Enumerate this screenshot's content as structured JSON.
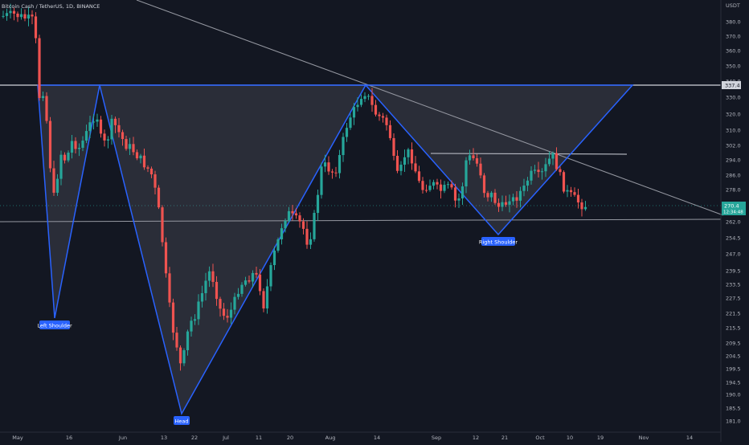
{
  "header": {
    "symbol_title": "Bitcoin Cash / TetherUS, 1D, BINANCE",
    "currency": "USDT"
  },
  "price_axis": {
    "ticks": [
      "380.0",
      "370.0",
      "360.0",
      "350.0",
      "340.0",
      "330.0",
      "320.0",
      "310.0",
      "302.0",
      "294.0",
      "286.0",
      "278.0",
      "270.0",
      "262.0",
      "254.5",
      "247.0",
      "239.5",
      "233.5",
      "227.5",
      "221.5",
      "215.5",
      "209.5",
      "204.5",
      "199.5",
      "194.5",
      "190.0",
      "185.5",
      "181.0"
    ],
    "badges": {
      "resistance": "337.4",
      "current_price": "270.4",
      "countdown": "12:34:48"
    }
  },
  "time_axis": {
    "labels": [
      "May",
      "16",
      "Jun",
      "13",
      "22",
      "Jul",
      "11",
      "20",
      "Aug",
      "14",
      "Sep",
      "12",
      "21",
      "Oct",
      "10",
      "19",
      "Nov",
      "14"
    ]
  },
  "annotations": {
    "left_shoulder": "Left Shoulder",
    "head": "Head",
    "right_shoulder": "Right Shoulder"
  },
  "colors": {
    "background": "#131722",
    "up": "#26a69a",
    "down": "#ef5350",
    "pattern_line": "#2962ff",
    "label_bg": "#2962ff",
    "level_line": "#d1d4dc",
    "axis_text": "#b2b5be"
  },
  "chart_data": {
    "type": "candlestick",
    "price_range": [
      181.0,
      384.0
    ],
    "levels": {
      "resistance": 337.4,
      "support": 262.0
    },
    "pattern": "inverse head and shoulders",
    "pattern_points": {
      "left_shoulder": 221.0,
      "head": 184.0,
      "right_shoulder": 256.0
    },
    "last_price": 270.4
  }
}
